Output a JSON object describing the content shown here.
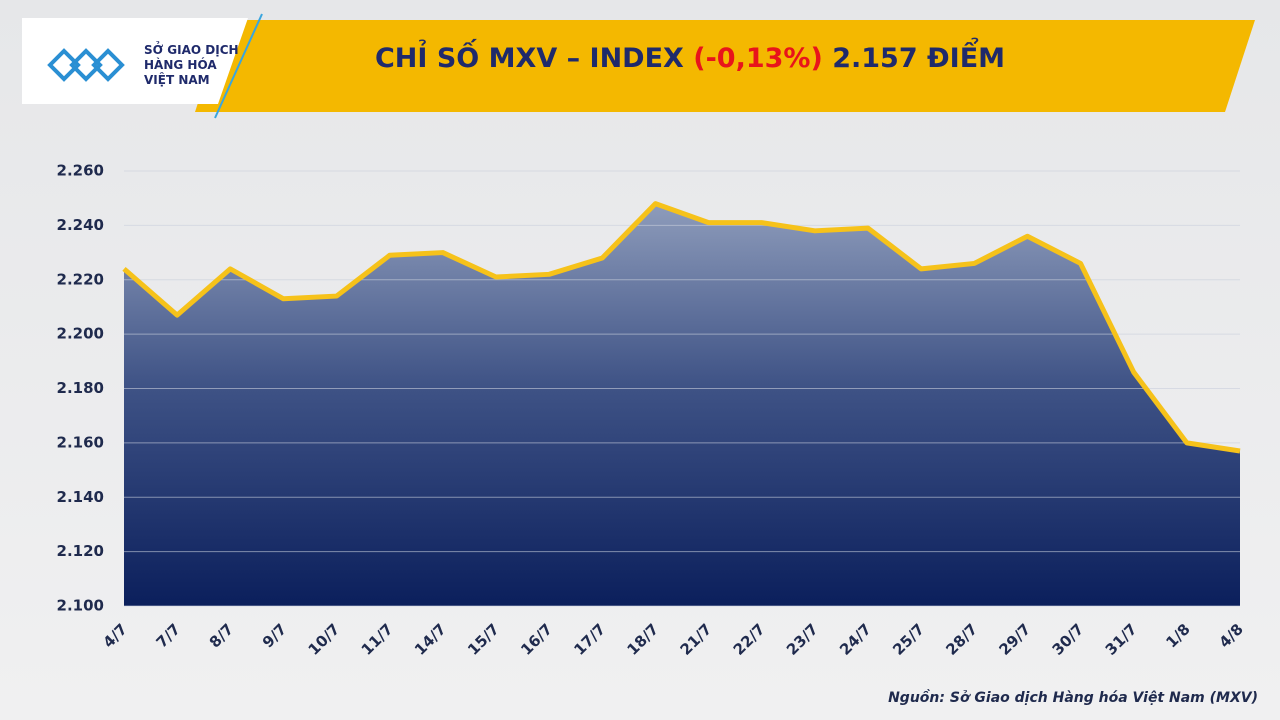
{
  "logo": {
    "lines": [
      "SỞ GIAO DỊCH",
      "HÀNG HÓA",
      "VIỆT NAM"
    ]
  },
  "chart_data": {
    "type": "area",
    "title_parts": [
      "CHỈ SỐ MXV – INDEX",
      "(-0,13%)",
      "2.157 ĐIỂM"
    ],
    "title_colors": [
      "#1f2a6b",
      "#e8141b",
      "#1f2a6b"
    ],
    "source": "Nguồn: Sở Giao dịch Hàng hóa Việt Nam (MXV)",
    "categories": [
      "4/7",
      "7/7",
      "8/7",
      "9/7",
      "10/7",
      "11/7",
      "14/7",
      "15/7",
      "16/7",
      "17/7",
      "18/7",
      "21/7",
      "22/7",
      "23/7",
      "24/7",
      "25/7",
      "28/7",
      "29/7",
      "30/7",
      "31/7",
      "1/8",
      "4/8"
    ],
    "values": [
      2224,
      2207,
      2224,
      2213,
      2214,
      2229,
      2230,
      2221,
      2222,
      2228,
      2248,
      2241,
      2241,
      2238,
      2239,
      2224,
      2226,
      2236,
      2226,
      2186,
      2160,
      2157
    ],
    "color": "#f6c21a",
    "ylim": [
      2100,
      2260
    ],
    "yticks": [
      {
        "value": 2100,
        "label": "2.100"
      },
      {
        "value": 2120,
        "label": "2.120"
      },
      {
        "value": 2140,
        "label": "2.140"
      },
      {
        "value": 2160,
        "label": "2.160"
      },
      {
        "value": 2180,
        "label": "2.180"
      },
      {
        "value": 2200,
        "label": "2.200"
      },
      {
        "value": 2220,
        "label": "2.220"
      },
      {
        "value": 2240,
        "label": "2.240"
      },
      {
        "value": 2260,
        "label": "2.260"
      }
    ],
    "grid": true
  }
}
